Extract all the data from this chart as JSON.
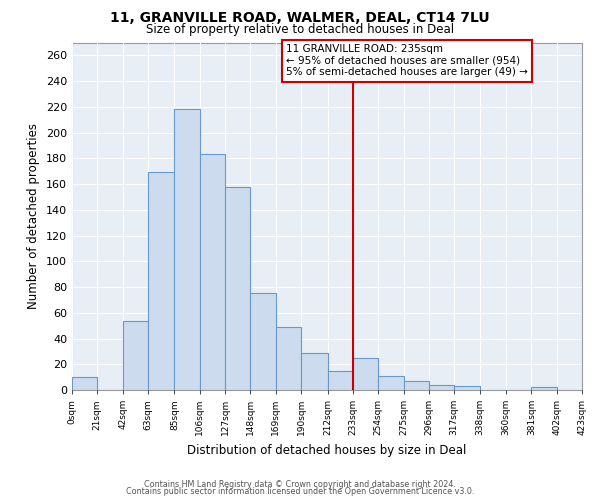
{
  "title": "11, GRANVILLE ROAD, WALMER, DEAL, CT14 7LU",
  "subtitle": "Size of property relative to detached houses in Deal",
  "xlabel": "Distribution of detached houses by size in Deal",
  "ylabel": "Number of detached properties",
  "bin_edges": [
    0,
    21,
    42,
    63,
    85,
    106,
    127,
    148,
    169,
    190,
    212,
    233,
    254,
    275,
    296,
    317,
    338,
    360,
    381,
    402,
    423
  ],
  "bin_counts": [
    10,
    0,
    54,
    169,
    218,
    183,
    158,
    75,
    49,
    29,
    15,
    25,
    11,
    7,
    4,
    3,
    0,
    0,
    2,
    0
  ],
  "bar_facecolor": "#ccdcee",
  "bar_edgecolor": "#6699cc",
  "vline_x": 233,
  "vline_color": "#cc0000",
  "annotation_title": "11 GRANVILLE ROAD: 235sqm",
  "annotation_line1": "← 95% of detached houses are smaller (954)",
  "annotation_line2": "5% of semi-detached houses are larger (49) →",
  "tick_labels": [
    "0sqm",
    "21sqm",
    "42sqm",
    "63sqm",
    "85sqm",
    "106sqm",
    "127sqm",
    "148sqm",
    "169sqm",
    "190sqm",
    "212sqm",
    "233sqm",
    "254sqm",
    "275sqm",
    "296sqm",
    "317sqm",
    "338sqm",
    "360sqm",
    "381sqm",
    "402sqm",
    "423sqm"
  ],
  "ylim": [
    0,
    270
  ],
  "yticks": [
    0,
    20,
    40,
    60,
    80,
    100,
    120,
    140,
    160,
    180,
    200,
    220,
    240,
    260
  ],
  "footer1": "Contains HM Land Registry data © Crown copyright and database right 2024.",
  "footer2": "Contains public sector information licensed under the Open Government Licence v3.0.",
  "bg_color": "#ffffff",
  "plot_bg_color": "#e8eef5",
  "grid_color": "#ffffff"
}
